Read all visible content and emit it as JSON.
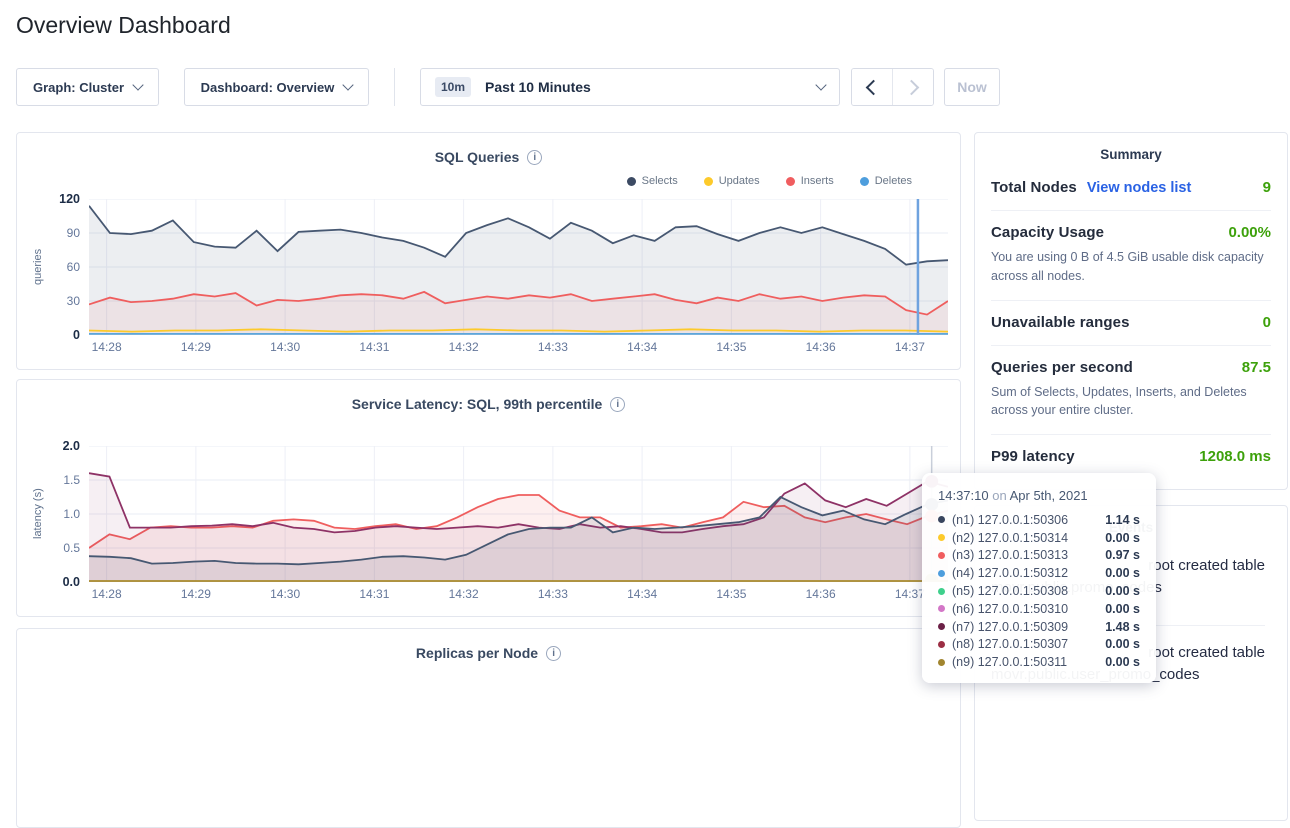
{
  "page": {
    "title": "Overview Dashboard"
  },
  "toolbar": {
    "graph_label": "Graph: Cluster",
    "dashboard_label": "Dashboard: Overview",
    "time_badge": "10m",
    "time_range_label": "Past 10 Minutes",
    "now_label": "Now"
  },
  "summary": {
    "title": "Summary",
    "rows": [
      {
        "label": "Total Nodes",
        "link": "View nodes list",
        "value": "9"
      },
      {
        "label": "Capacity Usage",
        "value": "0.00%",
        "desc": "You are using 0 B of 4.5 GiB usable disk capacity across all nodes."
      },
      {
        "label": "Unavailable ranges",
        "value": "0"
      },
      {
        "label": "Queries per second",
        "value": "87.5",
        "desc": "Sum of Selects, Updates, Inserts, and Deletes across your entire cluster."
      },
      {
        "label": "P99 latency",
        "value": "1208.0 ms"
      }
    ]
  },
  "events": {
    "title": "Events",
    "items": [
      {
        "line1": "root created table",
        "line2": "movr.public.promo_codes"
      },
      {
        "line1": "root created table",
        "line2": "movr.public.user_promo_codes"
      }
    ]
  },
  "tooltip": {
    "time": "14:37:10",
    "connector": "on",
    "date": "Apr 5th, 2021",
    "rows": [
      {
        "node": "(n1) 127.0.0.1:50306",
        "value": "1.14 s",
        "color": "#39455e"
      },
      {
        "node": "(n2) 127.0.0.1:50314",
        "value": "0.00 s",
        "color": "#fdca2b"
      },
      {
        "node": "(n3) 127.0.0.1:50313",
        "value": "0.97 s",
        "color": "#f05d5f"
      },
      {
        "node": "(n4) 127.0.0.1:50312",
        "value": "0.00 s",
        "color": "#4e9edd"
      },
      {
        "node": "(n5) 127.0.0.1:50308",
        "value": "0.00 s",
        "color": "#3fd08c"
      },
      {
        "node": "(n6) 127.0.0.1:50310",
        "value": "0.00 s",
        "color": "#d377c7"
      },
      {
        "node": "(n7) 127.0.0.1:50309",
        "value": "1.48 s",
        "color": "#6b2046"
      },
      {
        "node": "(n8) 127.0.0.1:50307",
        "value": "0.00 s",
        "color": "#9c2f44"
      },
      {
        "node": "(n9) 127.0.0.1:50311",
        "value": "0.00 s",
        "color": "#a1852f"
      }
    ]
  },
  "chart_data": [
    {
      "type": "line",
      "title": "SQL Queries",
      "ylabel": "queries",
      "ylim": [
        0,
        120
      ],
      "yticks": [
        "120",
        "90",
        "60",
        "30",
        "0"
      ],
      "xticks": [
        "14:28",
        "14:29",
        "14:30",
        "14:31",
        "14:32",
        "14:33",
        "14:34",
        "14:35",
        "14:36",
        "14:37"
      ],
      "legend": [
        {
          "name": "Selects",
          "color": "#3c4a63"
        },
        {
          "name": "Updates",
          "color": "#fdca2b"
        },
        {
          "name": "Inserts",
          "color": "#f05d5f"
        },
        {
          "name": "Deletes",
          "color": "#4e9edd"
        }
      ],
      "series": [
        {
          "name": "Selects",
          "color": "#475872",
          "fill": "rgba(71,88,114,0.10)",
          "values": [
            114,
            90,
            89,
            92,
            101,
            82,
            78,
            77,
            92,
            74,
            91,
            92,
            93,
            90,
            86,
            83,
            77,
            69,
            90,
            97,
            103,
            95,
            85,
            99,
            92,
            81,
            88,
            83,
            95,
            96,
            89,
            83,
            90,
            95,
            90,
            95,
            89,
            83,
            76,
            62,
            65,
            66
          ]
        },
        {
          "name": "Inserts",
          "color": "#ef5e5e",
          "fill": "rgba(239,94,94,0.08)",
          "values": [
            27,
            33,
            29,
            30,
            32,
            36,
            34,
            37,
            26,
            31,
            30,
            32,
            35,
            36,
            35,
            32,
            38,
            28,
            31,
            34,
            32,
            35,
            33,
            36,
            30,
            32,
            34,
            36,
            31,
            28,
            33,
            30,
            36,
            32,
            34,
            30,
            33,
            35,
            34,
            22,
            18,
            30
          ]
        },
        {
          "name": "Updates",
          "color": "#fdca2b",
          "values": [
            4,
            3,
            4,
            4,
            5,
            4,
            3,
            4,
            4,
            5,
            4,
            4,
            3,
            4,
            5,
            4,
            4,
            3,
            4,
            4,
            3
          ]
        },
        {
          "name": "Deletes",
          "color": "#5ba7dc",
          "values": [
            1,
            1,
            1,
            1,
            1,
            1,
            1,
            1,
            1,
            1,
            1
          ]
        }
      ],
      "hover": {
        "x_frac": 0.965,
        "color": "#6fa3df",
        "width": 2.5
      }
    },
    {
      "type": "line",
      "title": "Service Latency: SQL, 99th percentile",
      "ylabel": "latency (s)",
      "ylim": [
        0,
        2
      ],
      "yticks": [
        "2.0",
        "1.5",
        "1.0",
        "0.5",
        "0.0"
      ],
      "xticks": [
        "14:28",
        "14:29",
        "14:30",
        "14:31",
        "14:32",
        "14:33",
        "14:34",
        "14:35",
        "14:36",
        "14:37"
      ],
      "series": [
        {
          "name": "(n3) 127.0.0.1:50313",
          "color": "#ef5e5e",
          "fill": "rgba(239,94,94,0.10)",
          "values": [
            0.5,
            0.7,
            0.63,
            0.8,
            0.82,
            0.8,
            0.8,
            0.82,
            0.8,
            0.9,
            0.92,
            0.9,
            0.8,
            0.78,
            0.82,
            0.85,
            0.78,
            0.82,
            0.95,
            1.1,
            1.22,
            1.28,
            1.28,
            1.05,
            0.95,
            0.95,
            0.8,
            0.82,
            0.85,
            0.8,
            0.88,
            0.95,
            1.18,
            1.1,
            1.12,
            0.95,
            0.88,
            0.95,
            1.0,
            0.92,
            0.85,
            0.97,
            1.05
          ]
        },
        {
          "name": "(n7) 127.0.0.1:50309",
          "color": "#8e3266",
          "fill": "rgba(142,50,102,0.08)",
          "values": [
            1.6,
            1.55,
            0.8,
            0.8,
            0.8,
            0.82,
            0.83,
            0.85,
            0.82,
            0.87,
            0.8,
            0.78,
            0.73,
            0.75,
            0.8,
            0.82,
            0.8,
            0.78,
            0.8,
            0.82,
            0.8,
            0.85,
            0.8,
            0.78,
            0.85,
            0.8,
            0.82,
            0.78,
            0.73,
            0.73,
            0.78,
            0.82,
            0.85,
            0.95,
            1.3,
            1.45,
            1.2,
            1.1,
            1.22,
            1.12,
            1.3,
            1.48,
            1.4
          ]
        },
        {
          "name": "(n1) 127.0.0.1:50306",
          "color": "#475872",
          "fill": "rgba(71,88,114,0.12)",
          "values": [
            0.38,
            0.37,
            0.35,
            0.27,
            0.28,
            0.3,
            0.31,
            0.28,
            0.27,
            0.27,
            0.26,
            0.28,
            0.3,
            0.33,
            0.37,
            0.38,
            0.36,
            0.33,
            0.4,
            0.55,
            0.7,
            0.78,
            0.8,
            0.8,
            0.95,
            0.73,
            0.8,
            0.78,
            0.8,
            0.82,
            0.85,
            0.88,
            0.95,
            1.25,
            1.1,
            0.98,
            1.05,
            0.92,
            0.85,
            1.0,
            1.14,
            1.2
          ]
        },
        {
          "name": "(n9) 127.0.0.1:50311",
          "color": "#a98b2d",
          "values": [
            0.015,
            0.015,
            0.015,
            0.015,
            0.015,
            0.015,
            0.015,
            0.015,
            0.015,
            0.015,
            0.015
          ]
        }
      ],
      "hover": {
        "x_frac": 0.981,
        "color": "#c9cfda",
        "width": 1.5,
        "dots": [
          {
            "value": 1.48,
            "color": "#8e3266"
          },
          {
            "value": 1.14,
            "color": "#475872"
          },
          {
            "value": 0.97,
            "color": "#ef5e5e"
          },
          {
            "value": 0.03,
            "color": "#b5944b"
          }
        ]
      }
    },
    {
      "type": "line",
      "title": "Replicas per Node"
    }
  ]
}
